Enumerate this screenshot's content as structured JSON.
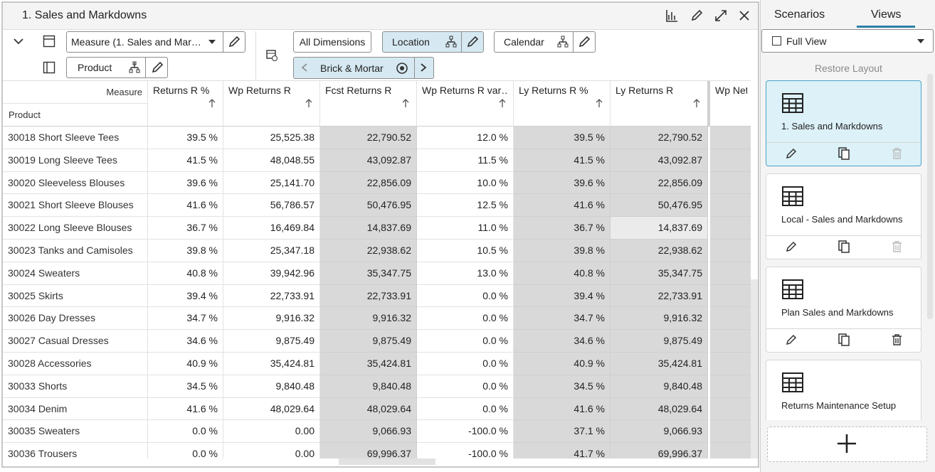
{
  "panel": {
    "title": "1. Sales and Markdowns"
  },
  "toolbar": {
    "measure": "Measure (1. Sales and Mar…",
    "product": "Product",
    "all_dimensions": "All Dimensions",
    "location": "Location",
    "calendar": "Calendar",
    "location_value": "Brick & Mortar"
  },
  "table": {
    "measure_header": "Measure",
    "product_header": "Product",
    "columns": [
      "Returns R %",
      "Wp Returns R",
      "Fcst Returns R",
      "Wp Returns R var…",
      "Ly Returns R %",
      "Ly Returns R",
      "Wp Net S"
    ],
    "rows": [
      [
        "30018 Short Sleeve Tees",
        "39.5 %",
        "25,525.38",
        "22,790.52",
        "12.0 %",
        "39.5 %",
        "22,790.52"
      ],
      [
        "30019 Long Sleeve Tees",
        "41.5 %",
        "48,048.55",
        "43,092.87",
        "11.5 %",
        "41.5 %",
        "43,092.87"
      ],
      [
        "30020 Sleeveless Blouses",
        "39.6 %",
        "25,141.70",
        "22,856.09",
        "10.0 %",
        "39.6 %",
        "22,856.09"
      ],
      [
        "30021 Short Sleeve Blouses",
        "41.6 %",
        "56,786.57",
        "50,476.95",
        "12.5 %",
        "41.6 %",
        "50,476.95"
      ],
      [
        "30022 Long Sleeve Blouses",
        "36.7 %",
        "16,469.84",
        "14,837.69",
        "11.0 %",
        "36.7 %",
        "14,837.69"
      ],
      [
        "30023 Tanks and Camisoles",
        "39.8 %",
        "25,347.18",
        "22,938.62",
        "10.5 %",
        "39.8 %",
        "22,938.62"
      ],
      [
        "30024 Sweaters",
        "40.8 %",
        "39,942.96",
        "35,347.75",
        "13.0 %",
        "40.8 %",
        "35,347.75"
      ],
      [
        "30025 Skirts",
        "39.4 %",
        "22,733.91",
        "22,733.91",
        "0.0 %",
        "39.4 %",
        "22,733.91"
      ],
      [
        "30026 Day Dresses",
        "34.7 %",
        "9,916.32",
        "9,916.32",
        "0.0 %",
        "34.7 %",
        "9,916.32"
      ],
      [
        "30027 Casual Dresses",
        "34.6 %",
        "9,875.49",
        "9,875.49",
        "0.0 %",
        "34.6 %",
        "9,875.49"
      ],
      [
        "30028 Accessories",
        "40.9 %",
        "35,424.81",
        "35,424.81",
        "0.0 %",
        "40.9 %",
        "35,424.81"
      ],
      [
        "30033 Shorts",
        "34.5 %",
        "9,840.48",
        "9,840.48",
        "0.0 %",
        "34.5 %",
        "9,840.48"
      ],
      [
        "30034 Denim",
        "41.6 %",
        "48,029.64",
        "48,029.64",
        "0.0 %",
        "41.6 %",
        "48,029.64"
      ],
      [
        "30035 Sweaters",
        "0.0 %",
        "0.00",
        "9,066.93",
        "-100.0 %",
        "37.1 %",
        "9,066.93"
      ],
      [
        "30036 Trousers",
        "0.0 %",
        "0.00",
        "69,996.37",
        "-100.0 %",
        "41.7 %",
        "69,996.37"
      ]
    ]
  },
  "sidebar": {
    "tabs": [
      "Scenarios",
      "Views"
    ],
    "view_select": "Full View",
    "restore": "Restore Layout",
    "views": [
      "1. Sales and Markdowns",
      "Local - Sales and Markdowns",
      "Plan Sales and Markdowns",
      "Returns Maintenance Setup"
    ]
  }
}
